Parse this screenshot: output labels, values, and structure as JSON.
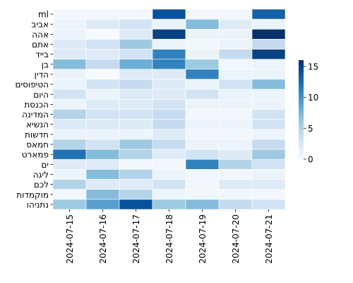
{
  "chart_data": {
    "type": "heatmap",
    "title": "",
    "xlabel": "",
    "ylabel": "",
    "x_categories": [
      "2024-07-15",
      "2024-07-16",
      "2024-07-17",
      "2024-07-18",
      "2024-07-19",
      "2024-07-20",
      "2024-07-21"
    ],
    "y_categories": [
      "ml",
      "אביב",
      "אהה",
      "אתם",
      "בייד",
      "בן",
      "הדין",
      "הטיפוסים",
      "היום",
      "הכנסת",
      "המדינה",
      "הנשיא",
      "חדשות",
      "חמאס",
      "פמארט",
      "ים",
      "ליגה",
      "לכם",
      "מוקמדות",
      "נתניהו"
    ],
    "values": [
      [
        0.5,
        0.5,
        0.5,
        14,
        0.5,
        0.5,
        13
      ],
      [
        1,
        2,
        3,
        1,
        7,
        2,
        1
      ],
      [
        1,
        0,
        2,
        15,
        1,
        1,
        16
      ],
      [
        2,
        3,
        6,
        1,
        0.5,
        1,
        4
      ],
      [
        2,
        2,
        3,
        11,
        1,
        4,
        15
      ],
      [
        7,
        4,
        8,
        11,
        6,
        0.5,
        1
      ],
      [
        1,
        0,
        2,
        2,
        11,
        1,
        1
      ],
      [
        1,
        3,
        4,
        2,
        1,
        3,
        7
      ],
      [
        3,
        1,
        2,
        2,
        3,
        1,
        1
      ],
      [
        1,
        2,
        2,
        3,
        1,
        1,
        1
      ],
      [
        5,
        3,
        3,
        4,
        0.5,
        0.5,
        3
      ],
      [
        2,
        2,
        2,
        4,
        1,
        1,
        3
      ],
      [
        1,
        1,
        1,
        2,
        0.5,
        0.5,
        1
      ],
      [
        5,
        3,
        6,
        4,
        1,
        1,
        4
      ],
      [
        12,
        7,
        5,
        2,
        3,
        2,
        6
      ],
      [
        2,
        2,
        0.5,
        0.5,
        11,
        5,
        3
      ],
      [
        1,
        7,
        5,
        1,
        0.5,
        0.5,
        1
      ],
      [
        5,
        2,
        2,
        3,
        0.5,
        2,
        2
      ],
      [
        0.5,
        7,
        5,
        1,
        0.5,
        0.5,
        0.5
      ],
      [
        6,
        9,
        14,
        6,
        7,
        4,
        3
      ]
    ],
    "colorbar": {
      "range": [
        0,
        16
      ],
      "ticks": [
        0,
        5,
        10,
        15
      ],
      "colormap": "Blues"
    },
    "grid": false,
    "colors": {
      "low": "#f7fbff",
      "high": "#08306b"
    }
  }
}
